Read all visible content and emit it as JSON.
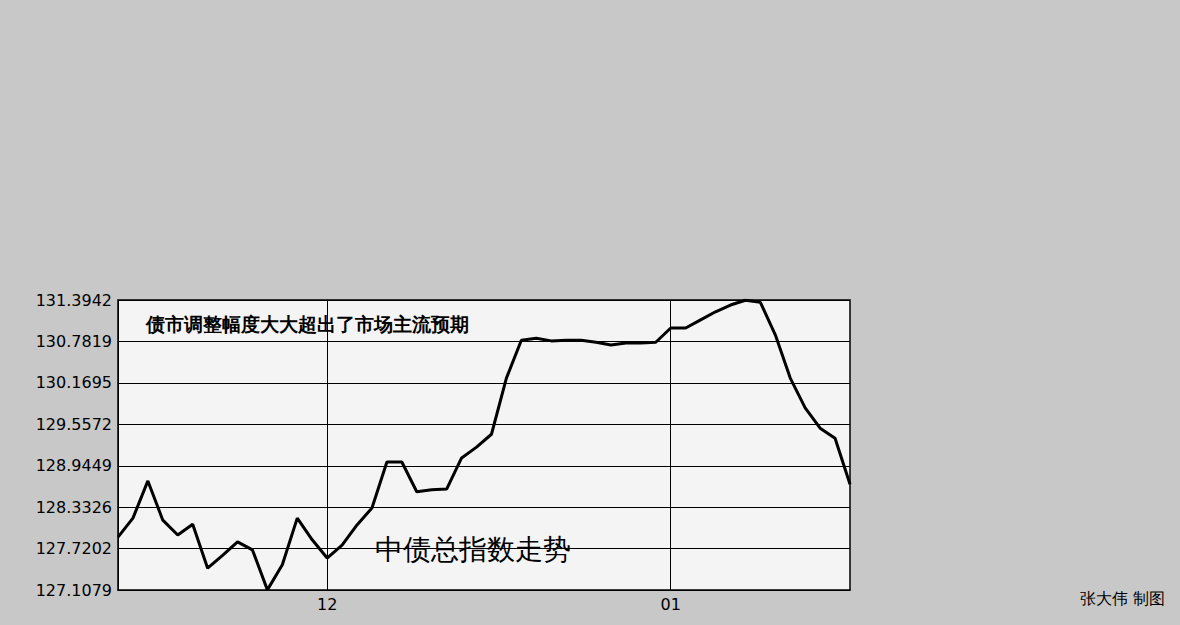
{
  "chart_data": {
    "type": "line",
    "title": "债市调整幅度大大超出了市场主流预期",
    "annotations": [
      "中债总指数走势",
      "张大伟 制图"
    ],
    "categories": [
      null,
      null,
      null,
      null,
      null,
      null,
      null,
      null,
      null,
      null,
      null,
      null,
      null,
      null,
      "12",
      null,
      null,
      null,
      null,
      null,
      null,
      null,
      null,
      null,
      null,
      null,
      null,
      null,
      null,
      null,
      null,
      null,
      null,
      null,
      null,
      null,
      null,
      "01",
      null,
      null,
      null,
      null,
      null,
      null,
      null,
      null,
      null,
      null,
      null,
      null
    ],
    "values": [
      127.89,
      128.17,
      128.72,
      128.14,
      127.92,
      128.08,
      127.43,
      127.62,
      127.82,
      127.7,
      127.11,
      127.48,
      128.17,
      127.85,
      127.58,
      127.77,
      128.07,
      128.32,
      129.0,
      129.0,
      128.56,
      128.59,
      128.6,
      129.06,
      129.22,
      129.41,
      130.24,
      130.8,
      130.83,
      130.79,
      130.8,
      130.8,
      130.77,
      130.73,
      130.76,
      130.76,
      130.77,
      130.98,
      130.98,
      131.1,
      131.22,
      131.32,
      131.39,
      131.36,
      130.88,
      130.24,
      129.8,
      129.5,
      129.35,
      128.67
    ],
    "color": "#000000",
    "ylim": [
      127.1079,
      131.3942
    ],
    "yticks": [
      127.1079,
      127.7202,
      128.3326,
      128.9449,
      129.5572,
      130.1695,
      130.7819,
      131.3942
    ],
    "grid": true
  }
}
